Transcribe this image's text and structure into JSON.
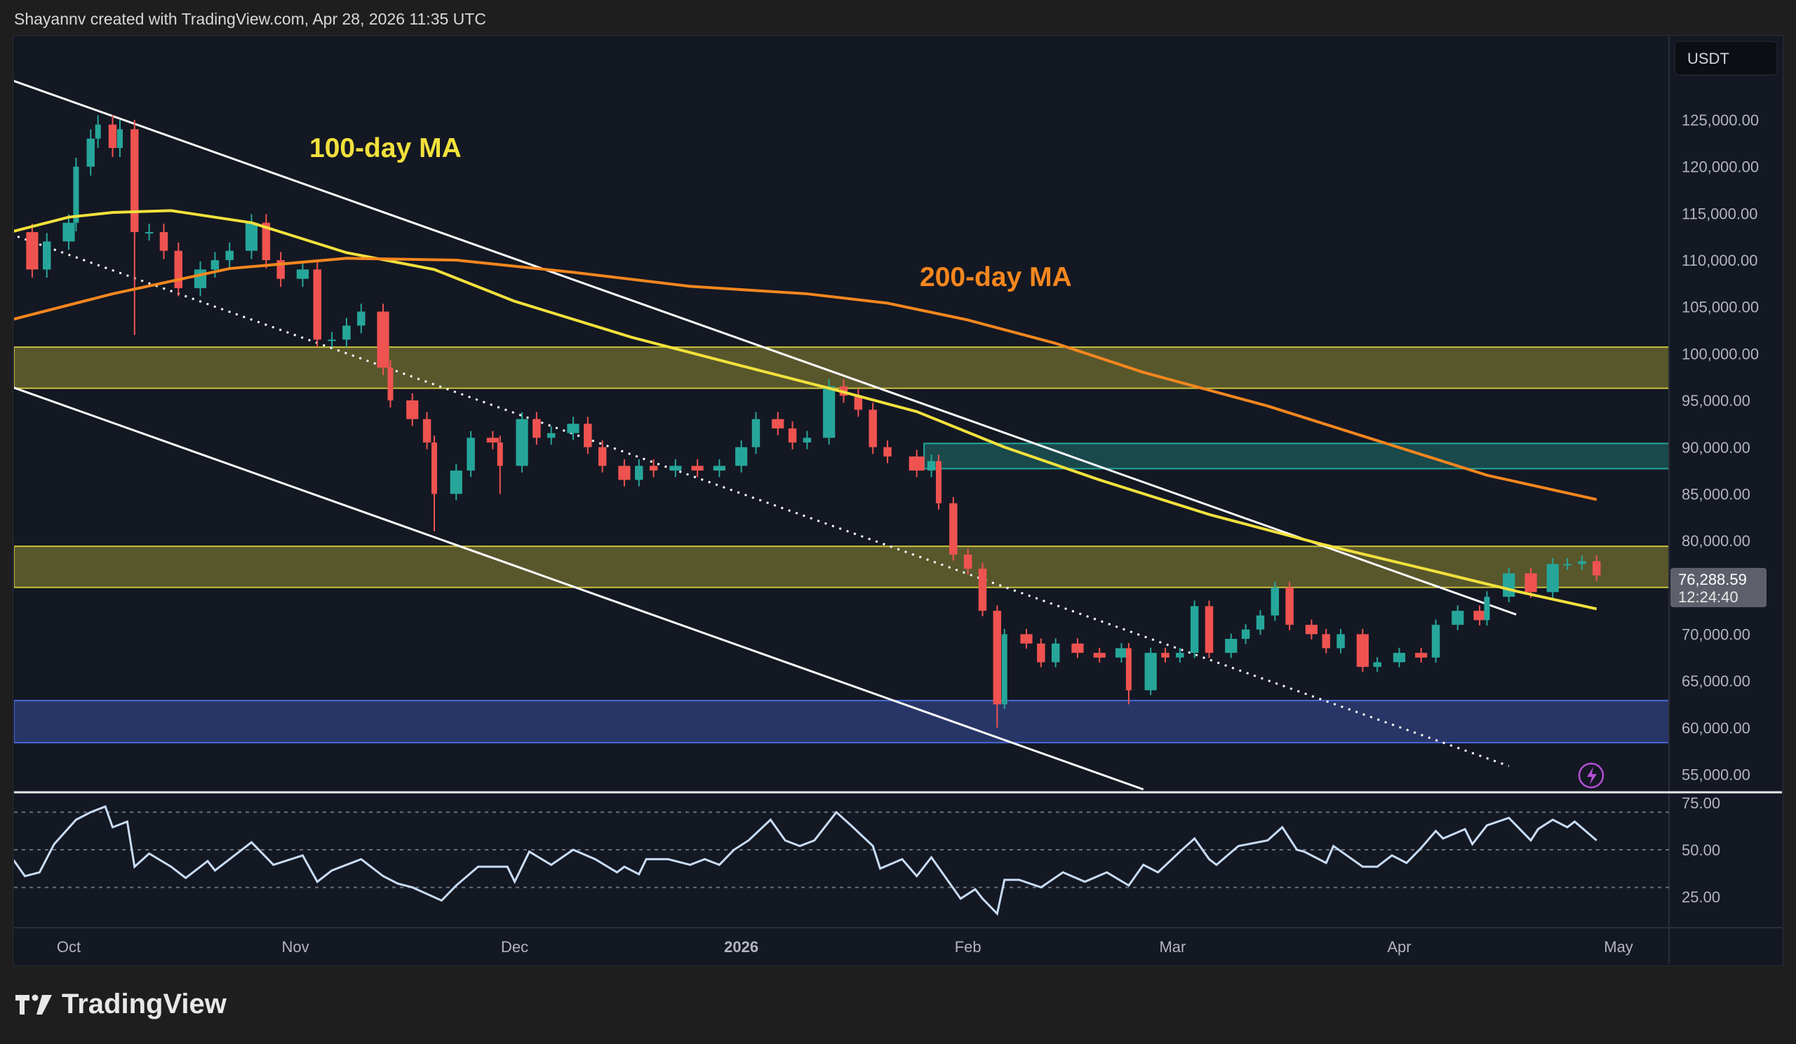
{
  "header": {
    "credit": "Shayannv created with TradingView.com, Apr 28, 2026 11:35 UTC"
  },
  "footer": {
    "logo": "TradingView"
  },
  "colors": {
    "up": "#26a69a",
    "down": "#ef5350",
    "ma100": "#f2e13c",
    "ma200": "#f7871e",
    "rsi": "#c9dcf5",
    "zone_yellow": "#c8bf3c",
    "zone_teal": "#26a69a",
    "zone_blue": "#4a6ad8",
    "signal_icon": "#b44fd6"
  },
  "chart_data": {
    "type": "candlestick",
    "currency": "USDT",
    "last_price": "76,288.59",
    "countdown": "12:24:40",
    "ylim": [
      52000,
      132000
    ],
    "y_ticks": [
      "125,000.00",
      "120,000.00",
      "115,000.00",
      "110,000.00",
      "105,000.00",
      "100,000.00",
      "95,000.00",
      "90,000.00",
      "85,000.00",
      "80,000.00",
      "70,000.00",
      "65,000.00",
      "60,000.00",
      "55,000.00"
    ],
    "y_tick_values": [
      125000,
      120000,
      115000,
      110000,
      105000,
      100000,
      95000,
      90000,
      85000,
      80000,
      70000,
      65000,
      60000,
      55000
    ],
    "x_ticks": [
      {
        "label": "Oct",
        "date": "2025-10-01"
      },
      {
        "label": "Nov",
        "date": "2025-11-01"
      },
      {
        "label": "Dec",
        "date": "2025-12-01"
      },
      {
        "label": "2026",
        "date": "2026-01-01"
      },
      {
        "label": "Feb",
        "date": "2026-02-01"
      },
      {
        "label": "Mar",
        "date": "2026-03-01"
      },
      {
        "label": "Apr",
        "date": "2026-04-01"
      },
      {
        "label": "May",
        "date": "2026-05-01"
      }
    ],
    "closes": [
      [
        "2025-09-23",
        113000
      ],
      [
        "2025-09-26",
        109000
      ],
      [
        "2025-09-28",
        112000
      ],
      [
        "2025-10-01",
        114000
      ],
      [
        "2025-10-02",
        120000
      ],
      [
        "2025-10-04",
        123000
      ],
      [
        "2025-10-05",
        124500
      ],
      [
        "2025-10-07",
        122000
      ],
      [
        "2025-10-08",
        124000
      ],
      [
        "2025-10-10",
        113000
      ],
      [
        "2025-10-12",
        113000
      ],
      [
        "2025-10-14",
        111000
      ],
      [
        "2025-10-16",
        107000
      ],
      [
        "2025-10-19",
        109000
      ],
      [
        "2025-10-21",
        110000
      ],
      [
        "2025-10-23",
        111000
      ],
      [
        "2025-10-26",
        114000
      ],
      [
        "2025-10-28",
        110000
      ],
      [
        "2025-10-30",
        108000
      ],
      [
        "2025-11-02",
        109000
      ],
      [
        "2025-11-04",
        101500
      ],
      [
        "2025-11-06",
        101500
      ],
      [
        "2025-11-08",
        103000
      ],
      [
        "2025-11-10",
        104500
      ],
      [
        "2025-11-13",
        98500
      ],
      [
        "2025-11-14",
        95000
      ],
      [
        "2025-11-17",
        93000
      ],
      [
        "2025-11-19",
        90500
      ],
      [
        "2025-11-20",
        85000
      ],
      [
        "2025-11-23",
        87500
      ],
      [
        "2025-11-25",
        91000
      ],
      [
        "2025-11-28",
        90500
      ],
      [
        "2025-11-29",
        88000
      ],
      [
        "2025-12-02",
        93000
      ],
      [
        "2025-12-04",
        91000
      ],
      [
        "2025-12-06",
        91500
      ],
      [
        "2025-12-09",
        92500
      ],
      [
        "2025-12-11",
        90000
      ],
      [
        "2025-12-13",
        88000
      ],
      [
        "2025-12-16",
        86500
      ],
      [
        "2025-12-18",
        88000
      ],
      [
        "2025-12-20",
        87500
      ],
      [
        "2025-12-23",
        88000
      ],
      [
        "2025-12-26",
        87500
      ],
      [
        "2025-12-29",
        88000
      ],
      [
        "2026-01-01",
        90000
      ],
      [
        "2026-01-03",
        93000
      ],
      [
        "2026-01-06",
        92000
      ],
      [
        "2026-01-08",
        90500
      ],
      [
        "2026-01-10",
        91000
      ],
      [
        "2026-01-13",
        96500
      ],
      [
        "2026-01-15",
        95500
      ],
      [
        "2026-01-17",
        94000
      ],
      [
        "2026-01-19",
        90000
      ],
      [
        "2026-01-21",
        89000
      ],
      [
        "2026-01-25",
        87500
      ],
      [
        "2026-01-27",
        88500
      ],
      [
        "2026-01-28",
        84000
      ],
      [
        "2026-01-30",
        78500
      ],
      [
        "2026-02-01",
        77000
      ],
      [
        "2026-02-03",
        72500
      ],
      [
        "2026-02-05",
        62500
      ],
      [
        "2026-02-06",
        70000
      ],
      [
        "2026-02-09",
        69000
      ],
      [
        "2026-02-11",
        67000
      ],
      [
        "2026-02-13",
        69000
      ],
      [
        "2026-02-16",
        68000
      ],
      [
        "2026-02-19",
        67500
      ],
      [
        "2026-02-22",
        68500
      ],
      [
        "2026-02-23",
        64000
      ],
      [
        "2026-02-26",
        68000
      ],
      [
        "2026-02-28",
        67500
      ],
      [
        "2026-03-02",
        68000
      ],
      [
        "2026-03-04",
        73000
      ],
      [
        "2026-03-06",
        68000
      ],
      [
        "2026-03-09",
        69500
      ],
      [
        "2026-03-11",
        70500
      ],
      [
        "2026-03-13",
        72000
      ],
      [
        "2026-03-15",
        75000
      ],
      [
        "2026-03-17",
        71000
      ],
      [
        "2026-03-20",
        70000
      ],
      [
        "2026-03-22",
        68500
      ],
      [
        "2026-03-24",
        70000
      ],
      [
        "2026-03-27",
        66500
      ],
      [
        "2026-03-29",
        67000
      ],
      [
        "2026-04-01",
        68000
      ],
      [
        "2026-04-04",
        67500
      ],
      [
        "2026-04-06",
        71000
      ],
      [
        "2026-04-09",
        72500
      ],
      [
        "2026-04-12",
        71500
      ],
      [
        "2026-04-13",
        74000
      ],
      [
        "2026-04-16",
        76500
      ],
      [
        "2026-04-19",
        74500
      ],
      [
        "2026-04-22",
        77500
      ],
      [
        "2026-04-24",
        77500
      ],
      [
        "2026-04-26",
        77800
      ],
      [
        "2026-04-28",
        76288.59
      ]
    ],
    "wick_lows": {
      "2025-10-10": 102000,
      "2025-11-20": 81000,
      "2025-11-29": 85000,
      "2026-02-05": 60000,
      "2026-02-23": 62500
    },
    "ma100": {
      "label": "100-day MA",
      "points": [
        [
          "2025-09-23",
          113000
        ],
        [
          "2025-10-01",
          114600
        ],
        [
          "2025-10-07",
          115100
        ],
        [
          "2025-10-15",
          115300
        ],
        [
          "2025-10-26",
          114000
        ],
        [
          "2025-11-08",
          110800
        ],
        [
          "2025-11-20",
          109000
        ],
        [
          "2025-12-01",
          105600
        ],
        [
          "2025-12-17",
          101750
        ],
        [
          "2026-01-01",
          98700
        ],
        [
          "2026-01-13",
          96300
        ],
        [
          "2026-01-25",
          93800
        ],
        [
          "2026-02-06",
          90000
        ],
        [
          "2026-02-19",
          86500
        ],
        [
          "2026-03-06",
          82800
        ],
        [
          "2026-03-21",
          79700
        ],
        [
          "2026-04-06",
          76700
        ],
        [
          "2026-04-17",
          74600
        ],
        [
          "2026-04-28",
          72700
        ]
      ]
    },
    "ma200": {
      "label": "200-day MA",
      "points": [
        [
          "2025-09-23",
          103600
        ],
        [
          "2025-10-07",
          106400
        ],
        [
          "2025-10-23",
          109100
        ],
        [
          "2025-11-08",
          110200
        ],
        [
          "2025-11-23",
          110000
        ],
        [
          "2025-12-09",
          108700
        ],
        [
          "2025-12-25",
          107200
        ],
        [
          "2026-01-10",
          106400
        ],
        [
          "2026-01-21",
          105400
        ],
        [
          "2026-02-01",
          103600
        ],
        [
          "2026-02-13",
          101100
        ],
        [
          "2026-02-25",
          98000
        ],
        [
          "2026-03-14",
          94400
        ],
        [
          "2026-03-29",
          90700
        ],
        [
          "2026-04-13",
          87000
        ],
        [
          "2026-04-28",
          84400
        ]
      ]
    },
    "zones": [
      {
        "kind": "yellow",
        "from": null,
        "low": 96300,
        "high": 100700
      },
      {
        "kind": "teal",
        "from": "2026-01-26",
        "low": 87700,
        "high": 90400
      },
      {
        "kind": "yellow",
        "from": null,
        "low": 75000,
        "high": 79400
      },
      {
        "kind": "blue",
        "from": null,
        "low": 58400,
        "high": 62900
      }
    ],
    "trendlines": [
      {
        "style": "solid",
        "from": [
          "2025-09-23",
          129300
        ],
        "to": [
          "2026-04-17",
          72100
        ]
      },
      {
        "style": "solid",
        "from": [
          "2025-09-23",
          96500
        ],
        "to": [
          "2026-02-25",
          53400
        ]
      },
      {
        "style": "dotted",
        "from": [
          "2025-09-23",
          112800
        ],
        "to": [
          "2026-04-16",
          55900
        ]
      }
    ],
    "rsi": {
      "ylim": [
        5,
        85
      ],
      "y_ticks": [
        "75.00",
        "50.00",
        "25.00"
      ],
      "y_tick_values": [
        75,
        50,
        25
      ],
      "bands": [
        70,
        50,
        30
      ],
      "values": [
        [
          "2025-09-23",
          47
        ],
        [
          "2025-09-25",
          36
        ],
        [
          "2025-09-27",
          38
        ],
        [
          "2025-09-29",
          53
        ],
        [
          "2025-10-02",
          66
        ],
        [
          "2025-10-04",
          70
        ],
        [
          "2025-10-06",
          73
        ],
        [
          "2025-10-07",
          62
        ],
        [
          "2025-10-09",
          65
        ],
        [
          "2025-10-10",
          41
        ],
        [
          "2025-10-12",
          48
        ],
        [
          "2025-10-15",
          41
        ],
        [
          "2025-10-17",
          35
        ],
        [
          "2025-10-20",
          44
        ],
        [
          "2025-10-21",
          39
        ],
        [
          "2025-10-23",
          45
        ],
        [
          "2025-10-26",
          54
        ],
        [
          "2025-10-29",
          42
        ],
        [
          "2025-11-02",
          47
        ],
        [
          "2025-11-04",
          33
        ],
        [
          "2025-11-06",
          39
        ],
        [
          "2025-11-10",
          45
        ],
        [
          "2025-11-13",
          36
        ],
        [
          "2025-11-15",
          32
        ],
        [
          "2025-11-17",
          30
        ],
        [
          "2025-11-21",
          23
        ],
        [
          "2025-11-23",
          31
        ],
        [
          "2025-11-26",
          41
        ],
        [
          "2025-11-30",
          41
        ],
        [
          "2025-12-01",
          33
        ],
        [
          "2025-12-03",
          49
        ],
        [
          "2025-12-06",
          42
        ],
        [
          "2025-12-09",
          50
        ],
        [
          "2025-12-12",
          45
        ],
        [
          "2025-12-15",
          38
        ],
        [
          "2025-12-16",
          41
        ],
        [
          "2025-12-18",
          37
        ],
        [
          "2025-12-19",
          45
        ],
        [
          "2025-12-22",
          45
        ],
        [
          "2025-12-25",
          42
        ],
        [
          "2025-12-27",
          45
        ],
        [
          "2025-12-29",
          42
        ],
        [
          "2025-12-31",
          50
        ],
        [
          "2026-01-02",
          55
        ],
        [
          "2026-01-05",
          66
        ],
        [
          "2026-01-07",
          55
        ],
        [
          "2026-01-09",
          52
        ],
        [
          "2026-01-11",
          55
        ],
        [
          "2026-01-14",
          70
        ],
        [
          "2026-01-16",
          63
        ],
        [
          "2026-01-19",
          52
        ],
        [
          "2026-01-20",
          40
        ],
        [
          "2026-01-23",
          45
        ],
        [
          "2026-01-25",
          36
        ],
        [
          "2026-01-27",
          46
        ],
        [
          "2026-01-29",
          35
        ],
        [
          "2026-01-31",
          24
        ],
        [
          "2026-02-02",
          29
        ],
        [
          "2026-02-03",
          24
        ],
        [
          "2026-02-05",
          16
        ],
        [
          "2026-02-06",
          34
        ],
        [
          "2026-02-08",
          34
        ],
        [
          "2026-02-11",
          30
        ],
        [
          "2026-02-14",
          38
        ],
        [
          "2026-02-17",
          33
        ],
        [
          "2026-02-20",
          38
        ],
        [
          "2026-02-23",
          31
        ],
        [
          "2026-02-25",
          42
        ],
        [
          "2026-02-27",
          38
        ],
        [
          "2026-03-02",
          49
        ],
        [
          "2026-03-04",
          56
        ],
        [
          "2026-03-06",
          45
        ],
        [
          "2026-03-07",
          42
        ],
        [
          "2026-03-10",
          52
        ],
        [
          "2026-03-14",
          55
        ],
        [
          "2026-03-16",
          62
        ],
        [
          "2026-03-18",
          50
        ],
        [
          "2026-03-19",
          49
        ],
        [
          "2026-03-22",
          43
        ],
        [
          "2026-03-23",
          52
        ],
        [
          "2026-03-27",
          41
        ],
        [
          "2026-03-29",
          41
        ],
        [
          "2026-03-31",
          47
        ],
        [
          "2026-04-02",
          43
        ],
        [
          "2026-04-04",
          51
        ],
        [
          "2026-04-06",
          60
        ],
        [
          "2026-04-07",
          56
        ],
        [
          "2026-04-10",
          61
        ],
        [
          "2026-04-11",
          53
        ],
        [
          "2026-04-13",
          63
        ],
        [
          "2026-04-16",
          67
        ],
        [
          "2026-04-19",
          55
        ],
        [
          "2026-04-20",
          61
        ],
        [
          "2026-04-22",
          66
        ],
        [
          "2026-04-24",
          62
        ],
        [
          "2026-04-25",
          65
        ],
        [
          "2026-04-28",
          55
        ]
      ]
    }
  }
}
